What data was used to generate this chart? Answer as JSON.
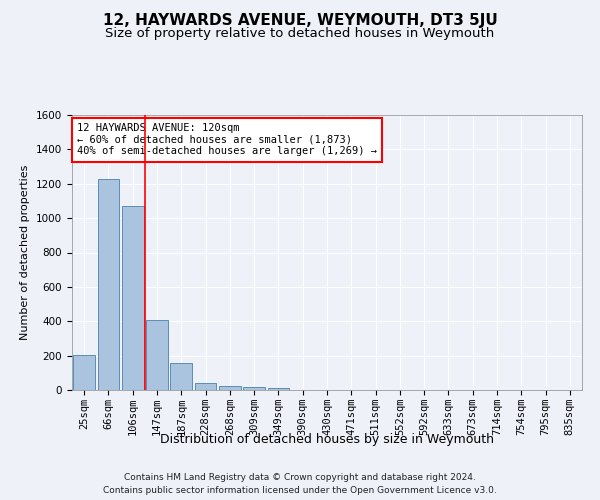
{
  "title": "12, HAYWARDS AVENUE, WEYMOUTH, DT3 5JU",
  "subtitle": "Size of property relative to detached houses in Weymouth",
  "xlabel": "Distribution of detached houses by size in Weymouth",
  "ylabel": "Number of detached properties",
  "bar_labels": [
    "25sqm",
    "66sqm",
    "106sqm",
    "147sqm",
    "187sqm",
    "228sqm",
    "268sqm",
    "309sqm",
    "349sqm",
    "390sqm",
    "430sqm",
    "471sqm",
    "511sqm",
    "552sqm",
    "592sqm",
    "633sqm",
    "673sqm",
    "714sqm",
    "754sqm",
    "795sqm",
    "835sqm"
  ],
  "bar_values": [
    205,
    1225,
    1070,
    410,
    160,
    43,
    25,
    15,
    12,
    0,
    0,
    0,
    0,
    0,
    0,
    0,
    0,
    0,
    0,
    0,
    0
  ],
  "bar_color": "#aac4e0",
  "bar_edgecolor": "#5b8db8",
  "ylim": [
    0,
    1600
  ],
  "yticks": [
    0,
    200,
    400,
    600,
    800,
    1000,
    1200,
    1400,
    1600
  ],
  "property_line_x": 2.5,
  "property_line_color": "red",
  "annotation_text": "12 HAYWARDS AVENUE: 120sqm\n← 60% of detached houses are smaller (1,873)\n40% of semi-detached houses are larger (1,269) →",
  "footer_line1": "Contains HM Land Registry data © Crown copyright and database right 2024.",
  "footer_line2": "Contains public sector information licensed under the Open Government Licence v3.0.",
  "background_color": "#eef2f8",
  "plot_background": "#eef2f8",
  "grid_color": "#ffffff",
  "title_fontsize": 11,
  "subtitle_fontsize": 9.5,
  "xlabel_fontsize": 9,
  "ylabel_fontsize": 8,
  "tick_fontsize": 7.5,
  "footer_fontsize": 6.5,
  "annotation_fontsize": 7.5
}
